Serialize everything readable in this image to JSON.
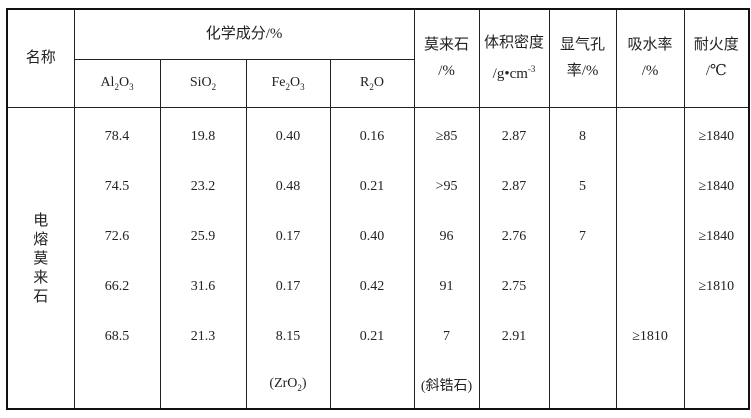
{
  "table": {
    "header": {
      "name": "名称",
      "chem_group": "化学成分/%",
      "chem_cols": [
        {
          "base1": "Al",
          "sub1": "2",
          "base2": "O",
          "sub2": "3"
        },
        {
          "base1": "SiO",
          "sub1": "2",
          "base2": "",
          "sub2": ""
        },
        {
          "base1": "Fe",
          "sub1": "2",
          "base2": "O",
          "sub2": "3"
        },
        {
          "base1": "R",
          "sub1": "2",
          "base2": "O",
          "sub2": ""
        }
      ],
      "mullite": [
        "莫来石",
        "/%"
      ],
      "density": [
        "体积密度",
        "/g•cm",
        "-3"
      ],
      "porosity": [
        "显气孔",
        "率/%"
      ],
      "absorption": [
        "吸水率",
        "/%"
      ],
      "refractoriness": [
        "耐火度",
        "/℃"
      ]
    },
    "row_label": "电熔莫来石",
    "rows": [
      [
        "78.4",
        "19.8",
        "0.40",
        "0.16",
        "≥85",
        "2.87",
        "8",
        "",
        "≥1840"
      ],
      [
        "74.5",
        "23.2",
        "0.48",
        "0.21",
        ">95",
        "2.87",
        "5",
        "",
        "≥1840"
      ],
      [
        "72.6",
        "25.9",
        "0.17",
        "0.40",
        "96",
        "2.76",
        "7",
        "",
        "≥1840"
      ],
      [
        "66.2",
        "31.6",
        "0.17",
        "0.42",
        "91",
        "2.75",
        "",
        "",
        "≥1810"
      ],
      [
        "68.5",
        "21.3",
        "8.15",
        "0.21",
        "7",
        "2.91",
        "",
        "≥1810",
        ""
      ]
    ],
    "note_row": {
      "fe_note_pre": "(ZrO",
      "fe_note_sub": "2",
      "fe_note_post": ")",
      "mullite_note": "(斜锆石)"
    }
  }
}
